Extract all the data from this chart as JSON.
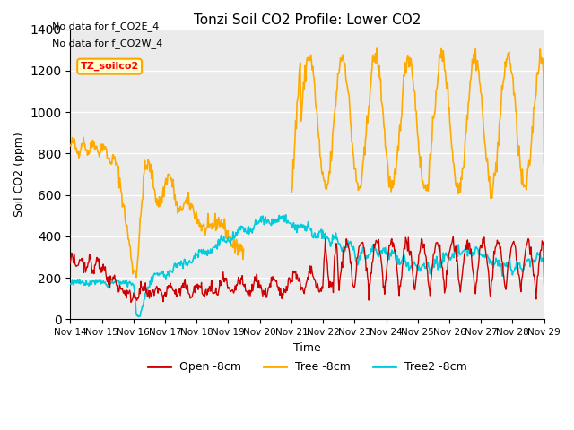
{
  "title": "Tonzi Soil CO2 Profile: Lower CO2",
  "xlabel": "Time",
  "ylabel": "Soil CO2 (ppm)",
  "ylim": [
    0,
    1400
  ],
  "yticks": [
    0,
    200,
    400,
    600,
    800,
    1000,
    1200,
    1400
  ],
  "bg_color": "#ebebeb",
  "grid_color": "#ffffff",
  "annotations": [
    "No data for f_CO2E_4",
    "No data for f_CO2W_4"
  ],
  "legend_label": "TZ_soilco2",
  "line_colors": {
    "open": "#cc0000",
    "tree": "#ffaa00",
    "tree2": "#00ccdd"
  },
  "legend_entries": [
    "Open -8cm",
    "Tree -8cm",
    "Tree2 -8cm"
  ],
  "xtick_labels": [
    "Nov 14",
    "Nov 15",
    "Nov 16",
    "Nov 17",
    "Nov 18",
    "Nov 19",
    "Nov 20",
    "Nov 21",
    "Nov 22",
    "Nov 23",
    "Nov 24",
    "Nov 25",
    "Nov 26",
    "Nov 27",
    "Nov 28",
    "Nov 29"
  ]
}
